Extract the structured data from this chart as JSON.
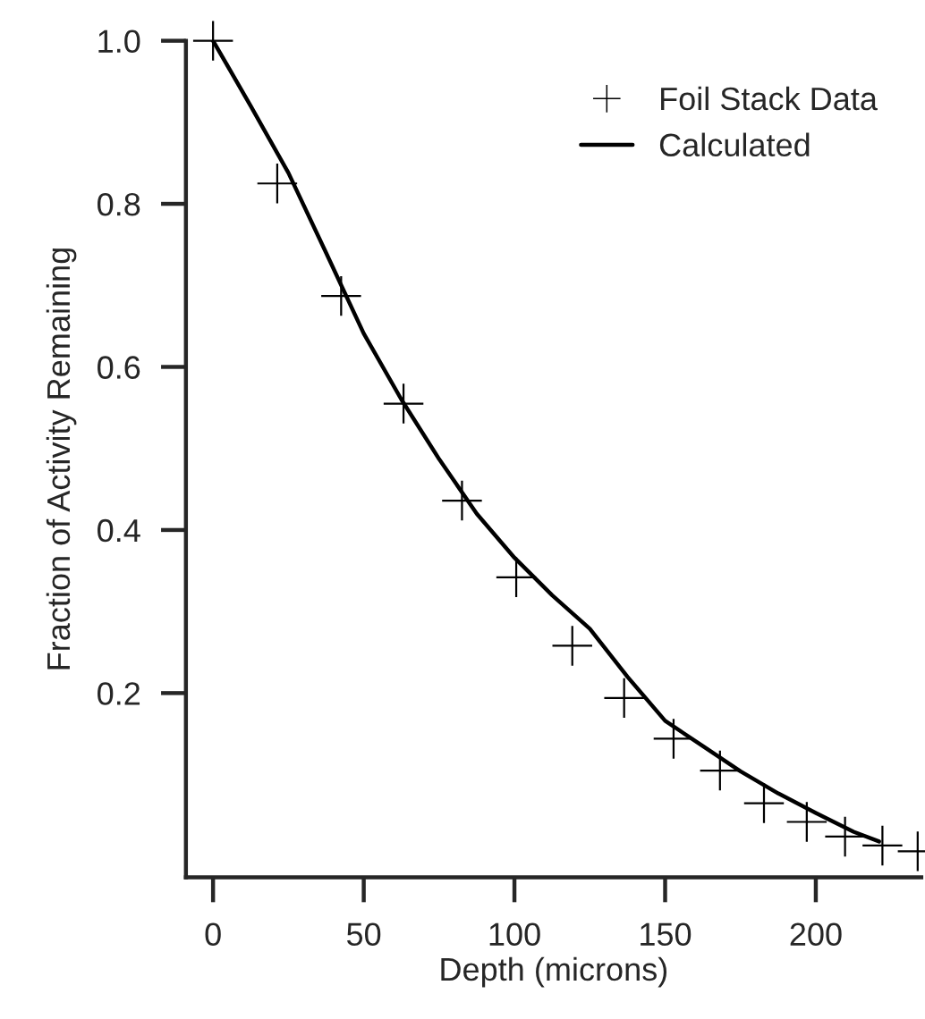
{
  "chart_data": {
    "type": "scatter",
    "xlabel": "Depth (microns)",
    "ylabel": "Fraction of Activity Remaining",
    "xlim": [
      -9,
      235
    ],
    "ylim": [
      -0.026,
      1.0
    ],
    "xticks": [
      0,
      50,
      100,
      150,
      200
    ],
    "yticks": [
      {
        "value": 0.2,
        "label": "0.2"
      },
      {
        "value": 0.4,
        "label": "0.4"
      },
      {
        "value": 0.6,
        "label": "0.6"
      },
      {
        "value": 0.8,
        "label": "0.8"
      },
      {
        "value": 1.0,
        "label": "1.0"
      }
    ],
    "grid": false,
    "legend": "top right",
    "series": [
      {
        "name": "Foil Stack Data",
        "marker": "cross",
        "color": "#000000",
        "x": [
          0,
          21.3,
          42.5,
          63.2,
          82.6,
          100.6,
          119.2,
          136.4,
          152.8,
          168.2,
          182.8,
          197,
          209.7,
          222.1,
          233.8
        ],
        "values": [
          1.0,
          0.825,
          0.687,
          0.555,
          0.436,
          0.342,
          0.258,
          0.194,
          0.144,
          0.105,
          0.065,
          0.042,
          0.024,
          0.013,
          0.006
        ]
      },
      {
        "name": "Calculated",
        "type": "line",
        "marker": "none",
        "line_style": "solid",
        "color": "#000000",
        "x": [
          0,
          12.5,
          25,
          37.5,
          50,
          62.5,
          75,
          87.5,
          100,
          112.5,
          125,
          137.5,
          150,
          162.5,
          175,
          187.5,
          200,
          212.5,
          221
        ],
        "values": [
          1.0,
          0.92,
          0.838,
          0.74,
          0.641,
          0.56,
          0.487,
          0.42,
          0.366,
          0.32,
          0.279,
          0.22,
          0.166,
          0.135,
          0.104,
          0.077,
          0.053,
          0.03,
          0.018
        ]
      }
    ]
  }
}
